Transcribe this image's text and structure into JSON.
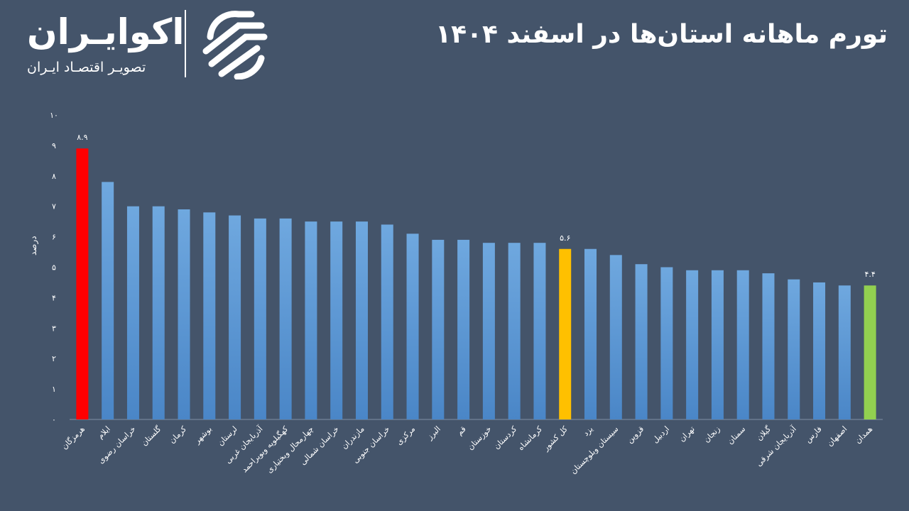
{
  "header": {
    "title": "تورم ماهانه استان‌ها در اسفند ۱۴۰۴"
  },
  "logo": {
    "name": "اکوایـران",
    "tagline": "تصویـر اقتصـاد ایـران"
  },
  "colors": {
    "background": "#44546A",
    "bar": "#5B9BD5",
    "highlight_max": "#FF0000",
    "highlight_country": "#FFC000",
    "highlight_min": "#92D050"
  },
  "chart_data": {
    "type": "bar",
    "title": "تورم ماهانه استان‌ها در اسفند ۱۴۰۴",
    "ylabel": "درصد",
    "xlabel": "",
    "ylim": [
      0,
      10
    ],
    "yticks": [
      0,
      1,
      2,
      3,
      4,
      5,
      6,
      7,
      8,
      9,
      10
    ],
    "ytick_labels": [
      "۰",
      "۱",
      "۲",
      "۳",
      "۴",
      "۵",
      "۶",
      "۷",
      "۸",
      "۹",
      "۱۰"
    ],
    "grid": false,
    "categories": [
      "هرمزگان",
      "ایلام",
      "خراسان رضوی",
      "گلستان",
      "کرمان",
      "بوشهر",
      "لرستان",
      "آذربایجان غربی",
      "کهگیلویه وبویراحمد",
      "چهارمحال وبختیاری",
      "خراسان شمالی",
      "مازندران",
      "خراسان جنوبی",
      "مرکزی",
      "البرز",
      "قم",
      "خوزستان",
      "کردستان",
      "کرمانشاه",
      "کل کشور",
      "یزد",
      "سیستان وبلوچستان",
      "قزوین",
      "اردبیل",
      "تهران",
      "زنجان",
      "سمنان",
      "گیلان",
      "آذربایجان شرقی",
      "فارس",
      "اصفهان",
      "همدان"
    ],
    "values": [
      8.9,
      7.8,
      7.0,
      7.0,
      6.9,
      6.8,
      6.7,
      6.6,
      6.6,
      6.5,
      6.5,
      6.5,
      6.4,
      6.1,
      5.9,
      5.9,
      5.8,
      5.8,
      5.8,
      5.6,
      5.6,
      5.4,
      5.1,
      5.0,
      4.9,
      4.9,
      4.9,
      4.8,
      4.6,
      4.5,
      4.4,
      4.4
    ],
    "highlights": {
      "0": "max",
      "19": "country",
      "31": "min"
    },
    "data_labels": [
      {
        "index": 0,
        "text": "۸.۹"
      },
      {
        "index": 19,
        "text": "۵.۶"
      },
      {
        "index": 31,
        "text": "۴.۴"
      }
    ]
  }
}
